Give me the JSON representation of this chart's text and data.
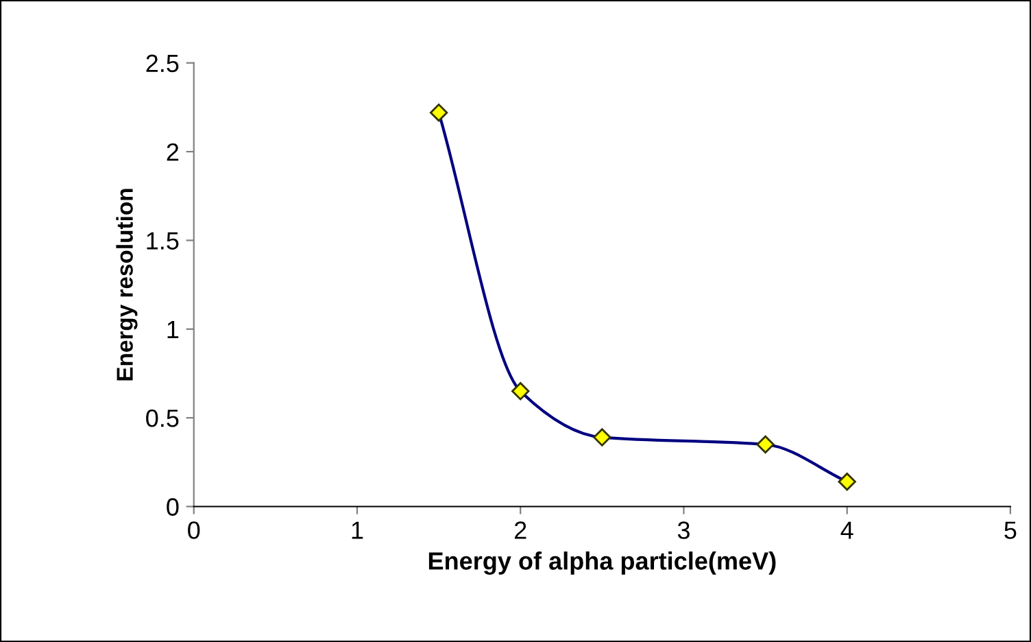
{
  "chart_data": {
    "type": "line",
    "xlabel": "Energy of alpha particle(meV)",
    "ylabel": "Energy resolution",
    "x": [
      1.5,
      2,
      2.5,
      3.5,
      4
    ],
    "series": [
      {
        "color": "#000080",
        "values": [
          2.22,
          0.65,
          0.39,
          0.35,
          0.14
        ]
      }
    ],
    "marker": "diamond",
    "line_style": "solid",
    "xlim": [
      0,
      5
    ],
    "xticks": [
      0,
      1,
      2,
      3,
      4,
      5
    ],
    "ylim": [
      0,
      2.5
    ],
    "yticks": [
      0,
      0.5,
      1,
      1.5,
      2,
      2.5
    ],
    "grid": false,
    "legend": false
  }
}
